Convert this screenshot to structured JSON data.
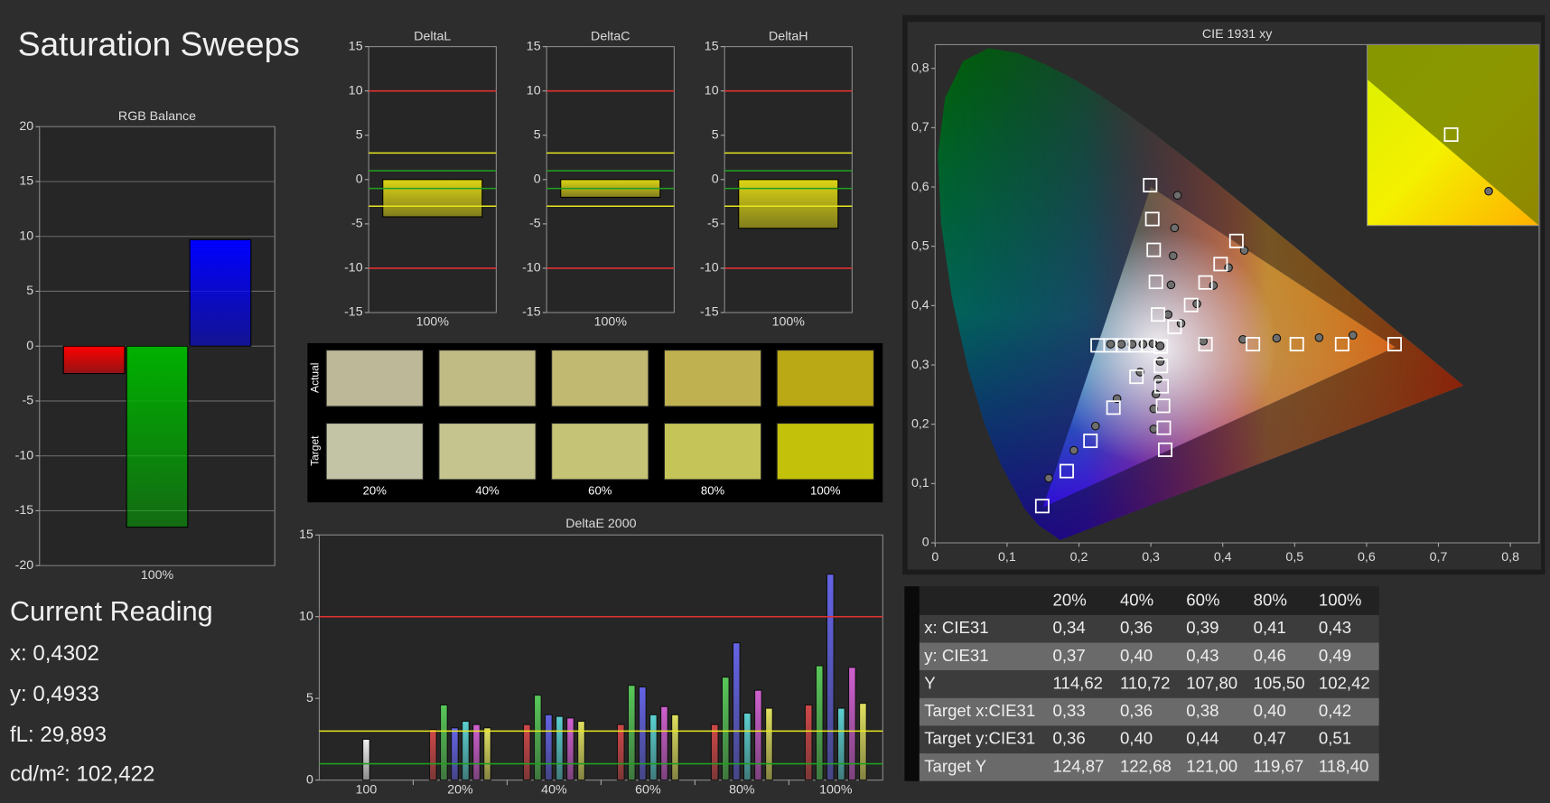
{
  "title": "Saturation Sweeps",
  "current_reading": {
    "title": "Current Reading",
    "lines": [
      "x: 0,4302",
      "y: 0,4933",
      "fL: 29,893",
      "cd/m²: 102,422"
    ]
  },
  "swatches": {
    "row_labels": [
      "Actual",
      "Target"
    ],
    "columns": [
      "20%",
      "40%",
      "60%",
      "80%",
      "100%"
    ],
    "actual_colors": [
      "#bcb898",
      "#c0ba85",
      "#c1b871",
      "#bfb150",
      "#baa815"
    ],
    "target_colors": [
      "#c3c4a6",
      "#c5c48f",
      "#c4c376",
      "#c4c459",
      "#c4c10a"
    ]
  },
  "table": {
    "columns": [
      "20%",
      "40%",
      "60%",
      "80%",
      "100%"
    ],
    "rows": [
      [
        "x: CIE31",
        "0,34",
        "0,36",
        "0,39",
        "0,41",
        "0,43"
      ],
      [
        "y: CIE31",
        "0,37",
        "0,40",
        "0,43",
        "0,46",
        "0,49"
      ],
      [
        "Y",
        "114,62",
        "110,72",
        "107,80",
        "105,50",
        "102,42"
      ],
      [
        "Target x:CIE31",
        "0,33",
        "0,36",
        "0,38",
        "0,40",
        "0,42"
      ],
      [
        "Target y:CIE31",
        "0,36",
        "0,40",
        "0,44",
        "0,47",
        "0,51"
      ],
      [
        "Target Y",
        "124,87",
        "122,68",
        "121,00",
        "119,67",
        "118,40"
      ]
    ]
  },
  "chart_data": [
    {
      "type": "bar",
      "title": "RGB Balance",
      "categories": [
        "100%"
      ],
      "series": [
        {
          "color": "#ff0000",
          "values": [
            -2.5
          ]
        },
        {
          "color": "#00b000",
          "values": [
            -16.5
          ]
        },
        {
          "color": "#0000ff",
          "values": [
            9.7
          ]
        }
      ],
      "ylim": [
        -20,
        20
      ],
      "yticks": [
        -20,
        -15,
        -10,
        -5,
        0,
        5,
        10,
        15,
        20
      ],
      "grid": true
    },
    {
      "type": "bar",
      "title": "DeltaL",
      "categories": [
        "100%"
      ],
      "values": [
        -4.2
      ],
      "color": "#dcd414",
      "ylim": [
        -15,
        15
      ],
      "yticks": [
        -15,
        -10,
        -5,
        0,
        5,
        10,
        15
      ],
      "grid": false,
      "reference_lines": [
        {
          "value": 10,
          "color": "#e03030"
        },
        {
          "value": -10,
          "color": "#e03030"
        },
        {
          "value": 3,
          "color": "#e8e820"
        },
        {
          "value": -3,
          "color": "#e8e820"
        },
        {
          "value": 1,
          "color": "#20a020"
        },
        {
          "value": -1,
          "color": "#20a020"
        }
      ]
    },
    {
      "type": "bar",
      "title": "DeltaC",
      "categories": [
        "100%"
      ],
      "values": [
        -2.0
      ],
      "color": "#dcd414",
      "ylim": [
        -15,
        15
      ],
      "yticks": [
        -15,
        -10,
        -5,
        0,
        5,
        10,
        15
      ],
      "grid": false,
      "reference_lines": [
        {
          "value": 10,
          "color": "#e03030"
        },
        {
          "value": -10,
          "color": "#e03030"
        },
        {
          "value": 3,
          "color": "#e8e820"
        },
        {
          "value": -3,
          "color": "#e8e820"
        },
        {
          "value": 1,
          "color": "#20a020"
        },
        {
          "value": -1,
          "color": "#20a020"
        }
      ]
    },
    {
      "type": "bar",
      "title": "DeltaH",
      "categories": [
        "100%"
      ],
      "values": [
        -5.5
      ],
      "color": "#dcd414",
      "ylim": [
        -15,
        15
      ],
      "yticks": [
        -15,
        -10,
        -5,
        0,
        5,
        10,
        15
      ],
      "grid": false,
      "reference_lines": [
        {
          "value": 10,
          "color": "#e03030"
        },
        {
          "value": -10,
          "color": "#e03030"
        },
        {
          "value": 3,
          "color": "#e8e820"
        },
        {
          "value": -3,
          "color": "#e8e820"
        },
        {
          "value": 1,
          "color": "#20a020"
        },
        {
          "value": -1,
          "color": "#20a020"
        }
      ]
    },
    {
      "type": "grouped_bar",
      "title": "DeltaE 2000",
      "categories": [
        "100",
        "20%",
        "40%",
        "60%",
        "80%",
        "100%"
      ],
      "series": [
        {
          "color": "#f0f0f0",
          "values": [
            2.5,
            null,
            null,
            null,
            null,
            null
          ]
        },
        {
          "color": "#d04848",
          "values": [
            null,
            3.1,
            3.4,
            3.4,
            3.4,
            4.6
          ]
        },
        {
          "color": "#58c858",
          "values": [
            null,
            4.6,
            5.2,
            5.8,
            6.3,
            7.0
          ]
        },
        {
          "color": "#6464e6",
          "values": [
            null,
            3.2,
            4.0,
            5.7,
            8.4,
            12.6
          ]
        },
        {
          "color": "#5cd0d0",
          "values": [
            null,
            3.6,
            3.9,
            4.0,
            4.1,
            4.4
          ]
        },
        {
          "color": "#d060d0",
          "values": [
            null,
            3.4,
            3.8,
            4.5,
            5.5,
            6.9
          ]
        },
        {
          "color": "#e0e060",
          "values": [
            null,
            3.2,
            3.6,
            4.0,
            4.4,
            4.7
          ]
        }
      ],
      "ylim": [
        0,
        15
      ],
      "yticks": [
        0,
        5,
        10,
        15
      ],
      "grid": false,
      "reference_lines": [
        {
          "value": 10,
          "color": "#e03030"
        },
        {
          "value": 3,
          "color": "#e8e820"
        },
        {
          "value": 1,
          "color": "#20a020"
        }
      ]
    },
    {
      "type": "scatter",
      "title": "CIE 1931 xy",
      "xlim": [
        0,
        0.84
      ],
      "ylim": [
        0,
        0.84
      ],
      "xticks": [
        0,
        {
          "value": 0.1,
          "label": "0,1"
        },
        {
          "value": 0.2,
          "label": "0,2"
        },
        {
          "value": 0.3,
          "label": "0,3"
        },
        {
          "value": 0.4,
          "label": "0,4"
        },
        {
          "value": 0.5,
          "label": "0,5"
        },
        {
          "value": 0.6,
          "label": "0,6"
        },
        {
          "value": 0.7,
          "label": "0,7"
        },
        {
          "value": 0.8,
          "label": "0,8"
        }
      ],
      "yticks": [
        0,
        {
          "value": 0.1,
          "label": "0,1"
        },
        {
          "value": 0.2,
          "label": "0,2"
        },
        {
          "value": 0.3,
          "label": "0,3"
        },
        {
          "value": 0.4,
          "label": "0,4"
        },
        {
          "value": 0.5,
          "label": "0,5"
        },
        {
          "value": 0.6,
          "label": "0,6"
        },
        {
          "value": 0.7,
          "label": "0,7"
        },
        {
          "value": 0.8,
          "label": "0,8"
        }
      ],
      "grid": false,
      "gamut": {
        "x": [
          0.64,
          0.3,
          0.15
        ],
        "y": [
          0.33,
          0.6,
          0.06
        ]
      },
      "series": [
        {
          "marker": "square",
          "color": "#ffffff",
          "x": [
            0.376,
            0.442,
            0.503,
            0.566,
            0.639,
            0.31,
            0.307,
            0.304,
            0.302,
            0.299,
            0.28,
            0.248,
            0.216,
            0.183,
            0.149,
            0.296,
            0.279,
            0.261,
            0.244,
            0.226,
            0.314,
            0.315,
            0.317,
            0.318,
            0.32,
            0.333,
            0.356,
            0.376,
            0.397,
            0.419,
            0.314
          ],
          "y": [
            0.335,
            0.335,
            0.335,
            0.335,
            0.335,
            0.385,
            0.44,
            0.494,
            0.546,
            0.603,
            0.28,
            0.228,
            0.172,
            0.121,
            0.062,
            0.333,
            0.333,
            0.333,
            0.333,
            0.333,
            0.298,
            0.264,
            0.231,
            0.194,
            0.157,
            0.364,
            0.401,
            0.439,
            0.47,
            0.509,
            0.331
          ]
        },
        {
          "marker": "circle",
          "color": "#6e6e6e",
          "x": [
            0.373,
            0.428,
            0.475,
            0.534,
            0.581,
            0.324,
            0.328,
            0.331,
            0.333,
            0.337,
            0.285,
            0.253,
            0.223,
            0.193,
            0.158,
            0.303,
            0.289,
            0.274,
            0.259,
            0.244,
            0.313,
            0.31,
            0.307,
            0.304,
            0.304,
            0.342,
            0.364,
            0.387,
            0.408,
            0.43,
            0.313
          ],
          "y": [
            0.34,
            0.343,
            0.345,
            0.346,
            0.35,
            0.385,
            0.435,
            0.484,
            0.531,
            0.586,
            0.288,
            0.243,
            0.197,
            0.156,
            0.109,
            0.336,
            0.335,
            0.335,
            0.335,
            0.335,
            0.306,
            0.276,
            0.251,
            0.226,
            0.192,
            0.37,
            0.403,
            0.434,
            0.464,
            0.493,
            0.332
          ]
        }
      ]
    }
  ]
}
